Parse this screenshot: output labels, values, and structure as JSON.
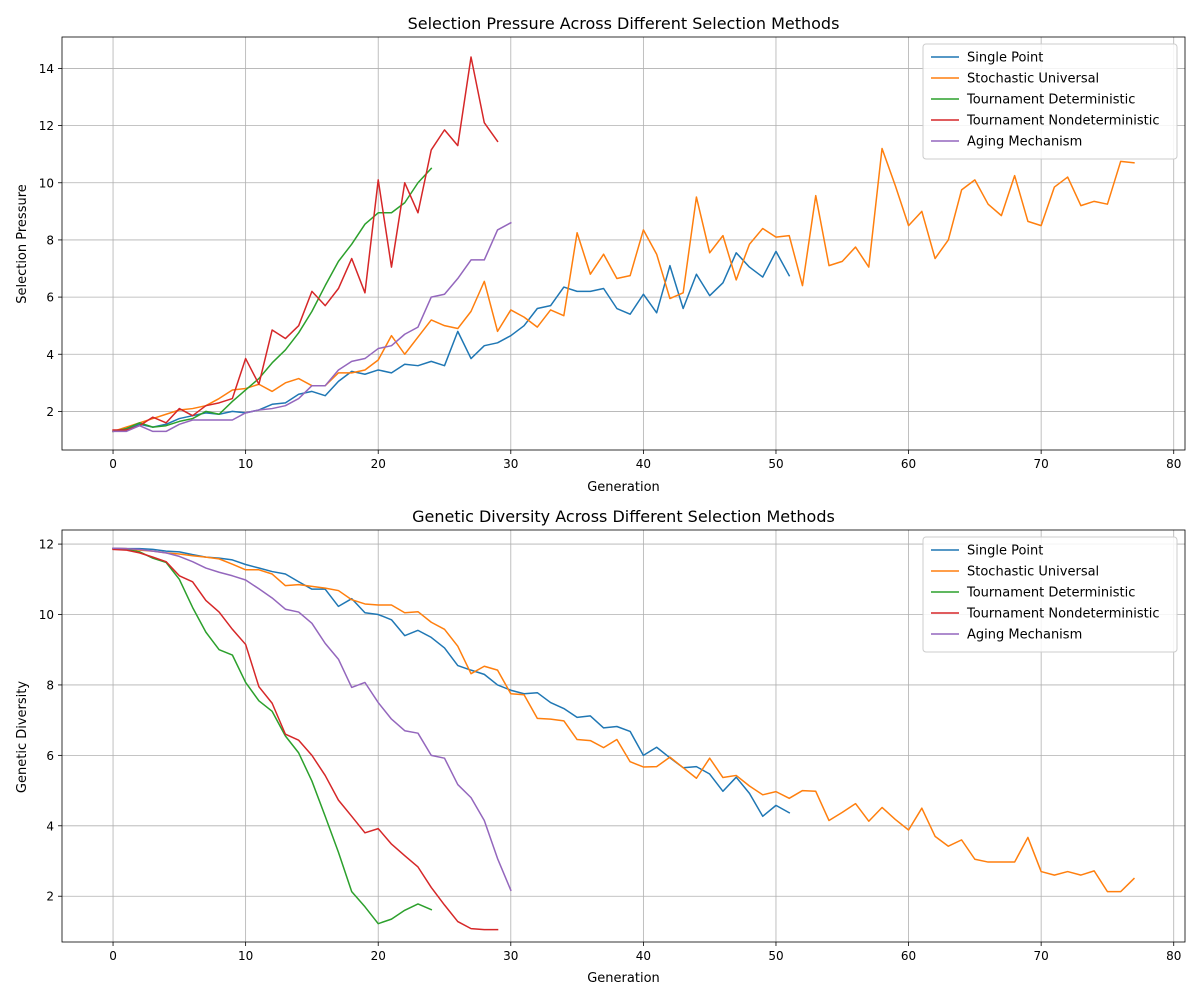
{
  "chart_data": [
    {
      "type": "line",
      "title": "Selection Pressure Across Different Selection Methods",
      "xlabel": "Generation",
      "ylabel": "Selection Pressure",
      "xlim": [
        -3.85,
        80.85
      ],
      "ylim": [
        0.65,
        15.1
      ],
      "xticks": [
        0,
        10,
        20,
        30,
        40,
        50,
        60,
        70,
        80
      ],
      "yticks": [
        2,
        4,
        6,
        8,
        10,
        12,
        14
      ],
      "grid": true,
      "legend_position": "top-right",
      "series": [
        {
          "name": "Single Point",
          "color": "#1f77b4",
          "x_start": 0,
          "values": [
            1.3,
            1.35,
            1.55,
            1.45,
            1.55,
            1.75,
            1.85,
            1.95,
            1.9,
            2.0,
            1.95,
            2.05,
            2.25,
            2.3,
            2.6,
            2.7,
            2.55,
            3.05,
            3.4,
            3.3,
            3.45,
            3.35,
            3.65,
            3.6,
            3.75,
            3.6,
            4.8,
            3.85,
            4.3,
            4.4,
            4.65,
            5.0,
            5.6,
            5.7,
            6.35,
            6.2,
            6.2,
            6.3,
            5.6,
            5.4,
            6.1,
            5.45,
            7.1,
            5.6,
            6.8,
            6.05,
            6.5,
            7.55,
            7.05,
            6.7,
            7.6,
            6.75
          ]
        },
        {
          "name": "Stochastic Universal",
          "color": "#ff7f0e",
          "x_start": 0,
          "values": [
            1.3,
            1.45,
            1.6,
            1.75,
            1.9,
            2.05,
            2.1,
            2.2,
            2.45,
            2.75,
            2.8,
            2.95,
            2.7,
            3.0,
            3.15,
            2.9,
            2.9,
            3.35,
            3.35,
            3.45,
            3.8,
            4.65,
            4.0,
            4.6,
            5.2,
            5.0,
            4.9,
            5.5,
            6.55,
            4.8,
            5.55,
            5.3,
            4.95,
            5.55,
            5.35,
            8.25,
            6.8,
            7.5,
            6.65,
            6.75,
            8.35,
            7.5,
            5.95,
            6.15,
            9.5,
            7.55,
            8.15,
            6.6,
            7.85,
            8.4,
            8.1,
            8.15,
            6.4,
            9.55,
            7.1,
            7.25,
            7.75,
            7.05,
            11.2,
            9.9,
            8.5,
            9.0,
            7.35,
            8.0,
            9.75,
            10.1,
            9.25,
            8.85,
            10.25,
            8.65,
            8.5,
            9.85,
            10.2,
            9.2,
            9.35,
            9.25,
            10.75,
            10.7
          ]
        },
        {
          "name": "Tournament Deterministic",
          "color": "#2ca02c",
          "x_start": 0,
          "values": [
            1.3,
            1.4,
            1.6,
            1.45,
            1.5,
            1.65,
            1.75,
            2.0,
            1.9,
            2.35,
            2.75,
            3.15,
            3.7,
            4.15,
            4.75,
            5.5,
            6.4,
            7.25,
            7.85,
            8.55,
            8.95,
            8.95,
            9.3,
            10.0,
            10.5
          ]
        },
        {
          "name": "Tournament Nondeterministic",
          "color": "#d62728",
          "x_start": 0,
          "values": [
            1.35,
            1.35,
            1.5,
            1.8,
            1.6,
            2.1,
            1.85,
            2.2,
            2.3,
            2.45,
            3.85,
            2.95,
            4.85,
            4.55,
            5.0,
            6.2,
            5.7,
            6.3,
            7.35,
            6.15,
            10.1,
            7.05,
            10.0,
            8.95,
            11.15,
            11.85,
            11.3,
            14.4,
            12.1,
            11.45
          ]
        },
        {
          "name": "Aging Mechanism",
          "color": "#9467bd",
          "x_start": 0,
          "values": [
            1.3,
            1.3,
            1.5,
            1.3,
            1.3,
            1.55,
            1.7,
            1.7,
            1.7,
            1.7,
            1.95,
            2.05,
            2.1,
            2.2,
            2.45,
            2.9,
            2.9,
            3.45,
            3.75,
            3.85,
            4.2,
            4.3,
            4.7,
            4.95,
            6.0,
            6.1,
            6.65,
            7.3,
            7.3,
            8.35,
            8.6
          ]
        }
      ]
    },
    {
      "type": "line",
      "title": "Genetic Diversity Across Different Selection Methods",
      "xlabel": "Generation",
      "ylabel": "Genetic Diversity",
      "xlim": [
        -3.85,
        80.85
      ],
      "ylim": [
        0.7,
        12.4
      ],
      "xticks": [
        0,
        10,
        20,
        30,
        40,
        50,
        60,
        70,
        80
      ],
      "yticks": [
        2,
        4,
        6,
        8,
        10,
        12
      ],
      "grid": true,
      "legend_position": "top-right",
      "series": [
        {
          "name": "Single Point",
          "color": "#1f77b4",
          "x_start": 0,
          "values": [
            11.88,
            11.87,
            11.87,
            11.85,
            11.8,
            11.78,
            11.7,
            11.63,
            11.6,
            11.55,
            11.42,
            11.32,
            11.22,
            11.15,
            10.93,
            10.72,
            10.72,
            10.23,
            10.45,
            10.05,
            10.0,
            9.85,
            9.4,
            9.55,
            9.35,
            9.05,
            8.55,
            8.42,
            8.3,
            8.0,
            7.85,
            7.75,
            7.78,
            7.5,
            7.33,
            7.08,
            7.12,
            6.78,
            6.82,
            6.68,
            6.0,
            6.23,
            5.93,
            5.65,
            5.68,
            5.47,
            4.98,
            5.38,
            4.92,
            4.27,
            4.58,
            4.37
          ]
        },
        {
          "name": "Stochastic Universal",
          "color": "#ff7f0e",
          "x_start": 0,
          "values": [
            11.87,
            11.87,
            11.83,
            11.8,
            11.75,
            11.72,
            11.67,
            11.63,
            11.58,
            11.43,
            11.27,
            11.27,
            11.15,
            10.82,
            10.85,
            10.8,
            10.75,
            10.68,
            10.42,
            10.3,
            10.27,
            10.27,
            10.05,
            10.08,
            9.78,
            9.58,
            9.1,
            8.32,
            8.53,
            8.42,
            7.75,
            7.72,
            7.05,
            7.03,
            6.98,
            6.45,
            6.42,
            6.22,
            6.45,
            5.82,
            5.67,
            5.68,
            5.95,
            5.65,
            5.35,
            5.92,
            5.37,
            5.43,
            5.13,
            4.88,
            4.97,
            4.78,
            5.0,
            4.98,
            4.15,
            4.38,
            4.63,
            4.13,
            4.52,
            4.18,
            3.88,
            4.5,
            3.7,
            3.42,
            3.6,
            3.05,
            2.97,
            2.97,
            2.97,
            3.67,
            2.7,
            2.6,
            2.7,
            2.6,
            2.72,
            2.13,
            2.13,
            2.5
          ]
        },
        {
          "name": "Tournament Deterministic",
          "color": "#2ca02c",
          "x_start": 0,
          "values": [
            11.87,
            11.85,
            11.78,
            11.6,
            11.48,
            11.0,
            10.2,
            9.5,
            9.0,
            8.85,
            8.07,
            7.55,
            7.25,
            6.55,
            6.07,
            5.27,
            4.27,
            3.25,
            2.13,
            1.7,
            1.22,
            1.35,
            1.6,
            1.78,
            1.62
          ]
        },
        {
          "name": "Tournament Nondeterministic",
          "color": "#d62728",
          "x_start": 0,
          "values": [
            11.85,
            11.83,
            11.75,
            11.63,
            11.5,
            11.1,
            10.93,
            10.4,
            10.07,
            9.58,
            9.15,
            7.95,
            7.48,
            6.6,
            6.43,
            6.0,
            5.43,
            4.73,
            4.27,
            3.8,
            3.92,
            3.48,
            3.15,
            2.83,
            2.25,
            1.75,
            1.28,
            1.08,
            1.05,
            1.05
          ]
        },
        {
          "name": "Aging Mechanism",
          "color": "#9467bd",
          "x_start": 0,
          "values": [
            11.88,
            11.87,
            11.85,
            11.8,
            11.75,
            11.65,
            11.5,
            11.32,
            11.2,
            11.1,
            10.98,
            10.73,
            10.47,
            10.15,
            10.07,
            9.75,
            9.18,
            8.73,
            7.93,
            8.07,
            7.5,
            7.03,
            6.7,
            6.63,
            6.0,
            5.92,
            5.17,
            4.8,
            4.15,
            3.07,
            2.17
          ]
        }
      ]
    }
  ]
}
